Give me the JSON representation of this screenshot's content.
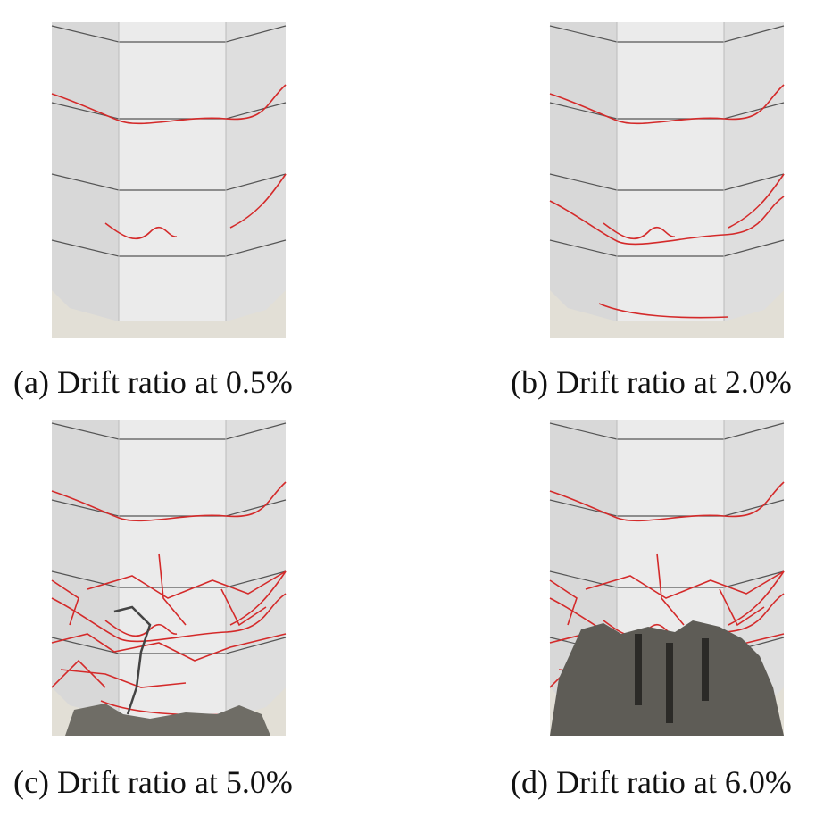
{
  "figure": {
    "panels": [
      {
        "caption": "(a) Drift ratio at 0.5%"
      },
      {
        "caption": "(b) Drift ratio at 2.0%"
      },
      {
        "caption": "(c) Drift ratio at 5.0%"
      },
      {
        "caption": "(d) Drift ratio at 6.0%"
      }
    ]
  }
}
